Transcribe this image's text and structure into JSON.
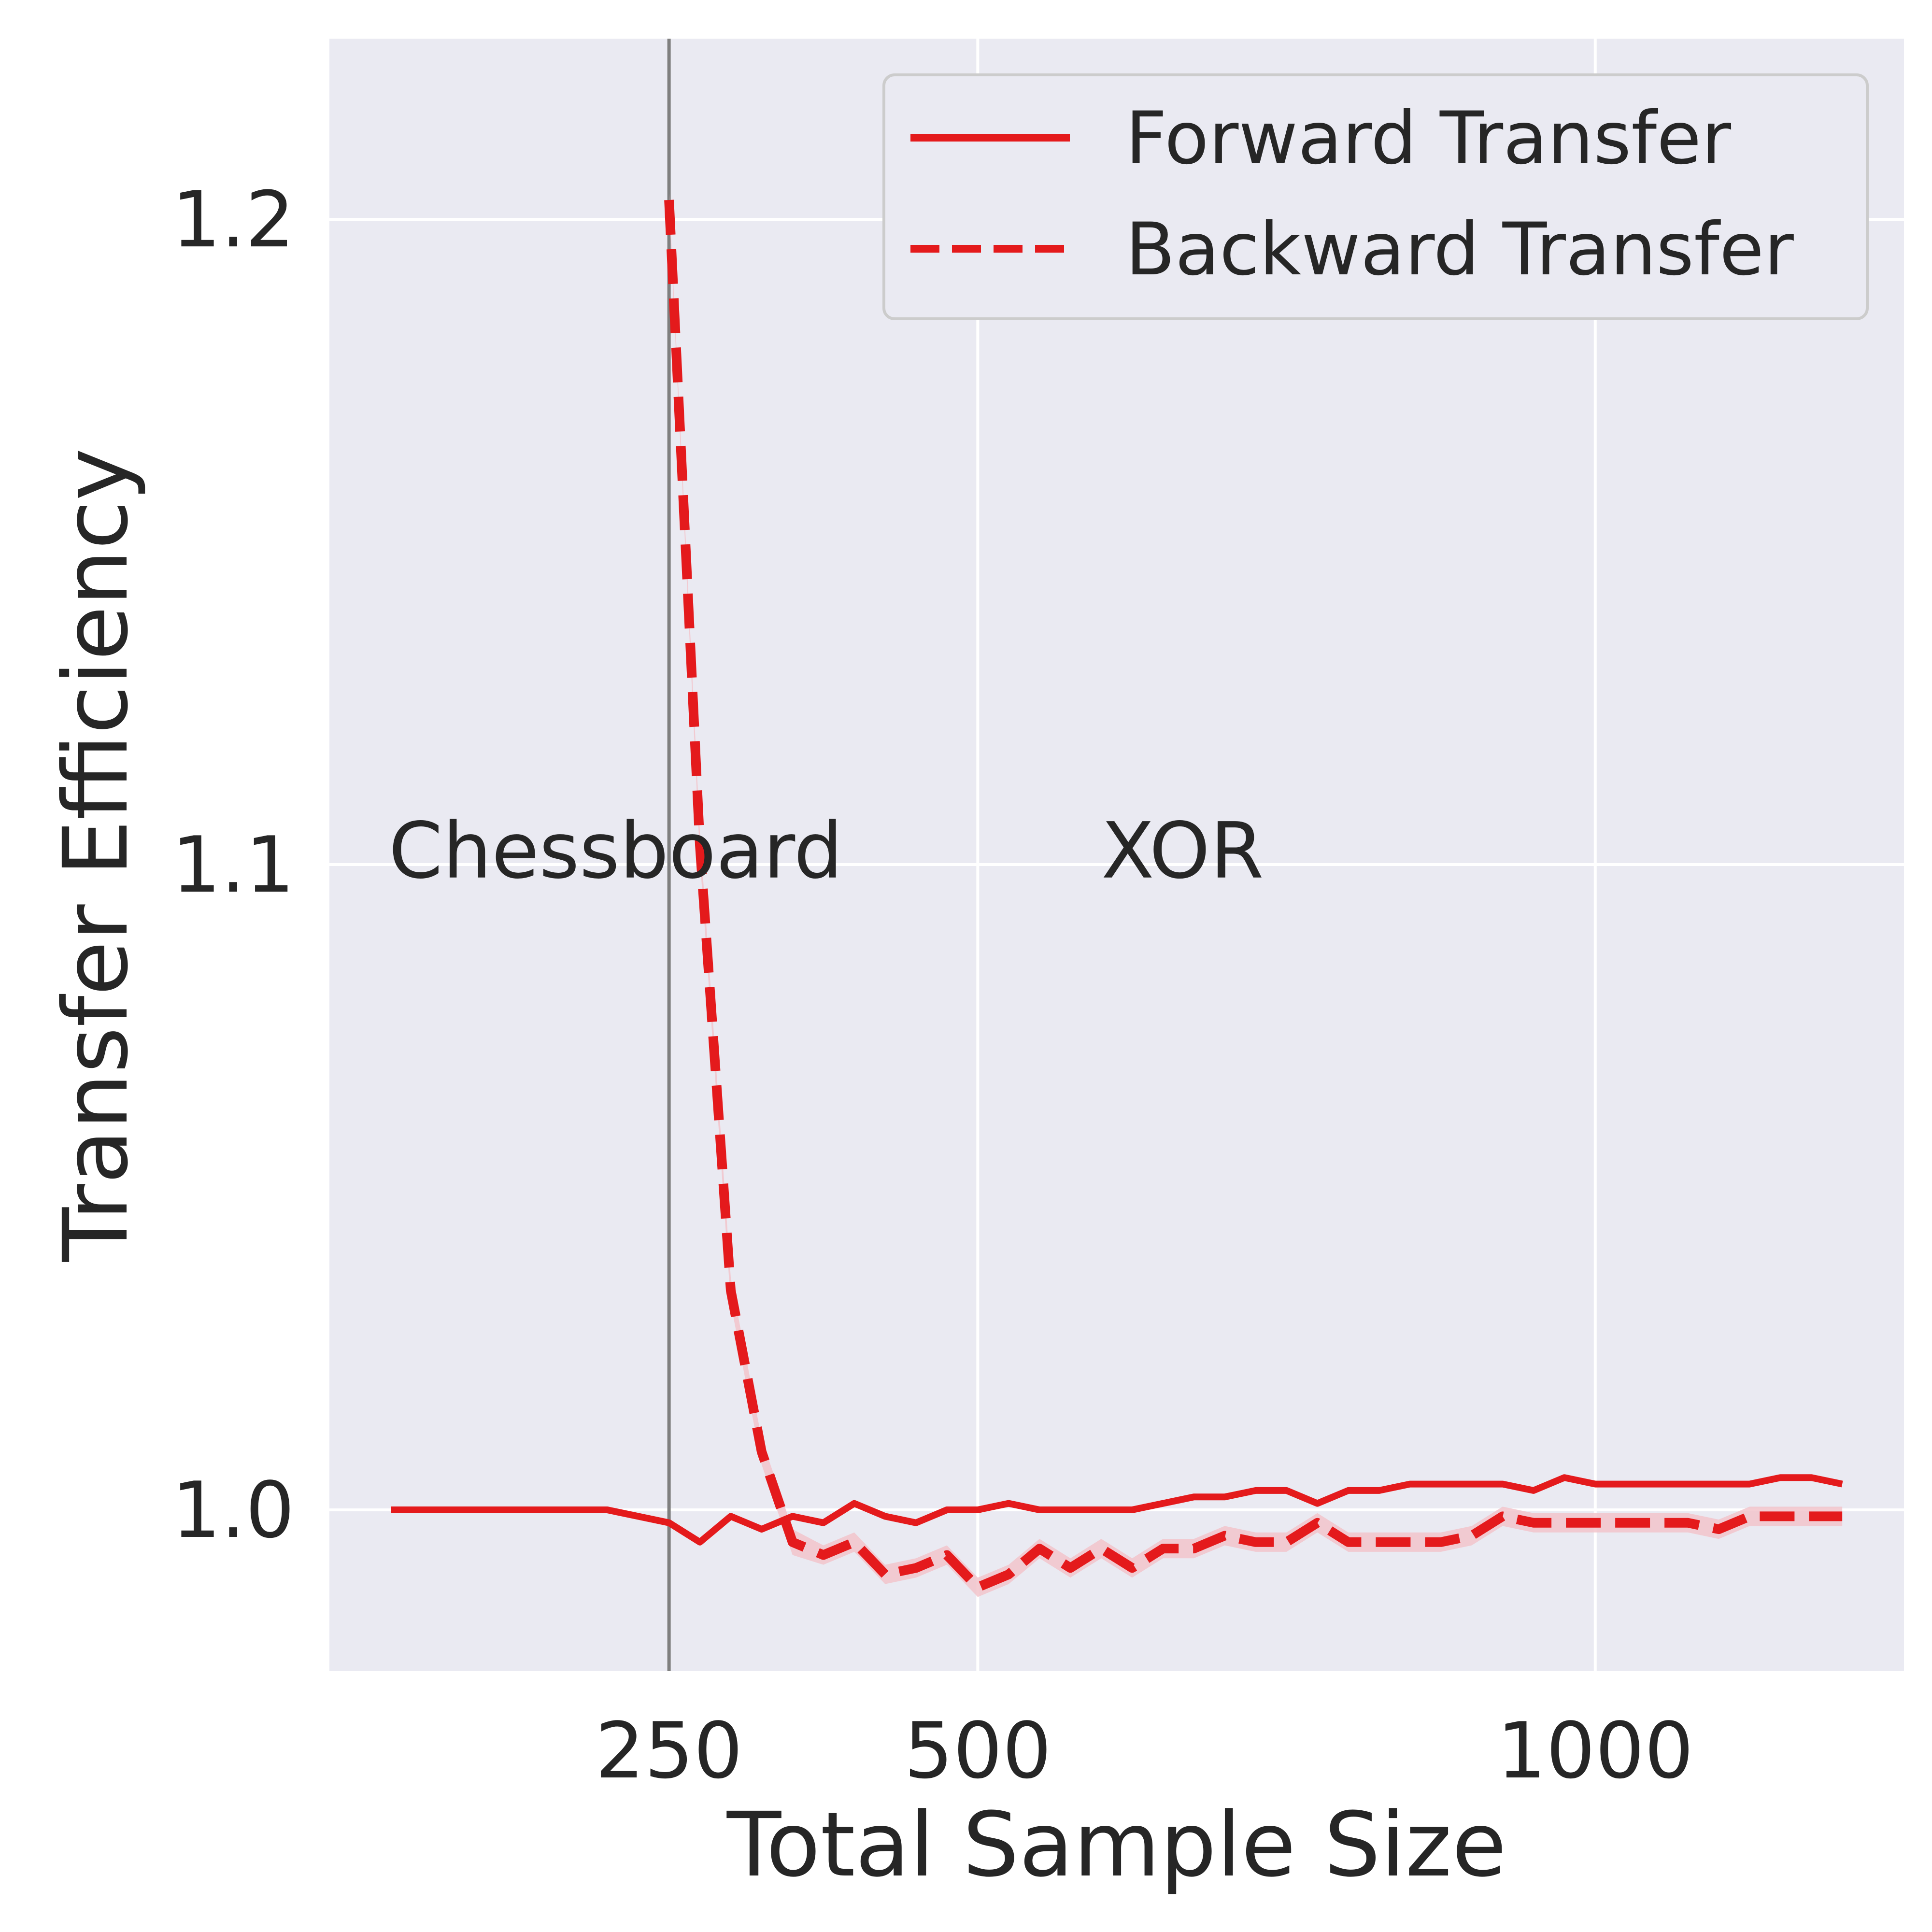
{
  "chart_data": {
    "type": "line",
    "xlabel": "Total Sample Size",
    "ylabel": "Transfer Efficiency",
    "xlim": [
      -25,
      1250
    ],
    "ylim": [
      0.975,
      1.228
    ],
    "xticks": [
      250,
      500,
      1000
    ],
    "xtick_labels": [
      "250",
      "500",
      "1000"
    ],
    "yticks": [
      1.0,
      1.1,
      1.2
    ],
    "ytick_labels": [
      "1.0",
      "1.1",
      "1.2"
    ],
    "grid": true,
    "legend_position": "top-right",
    "vline_x": 250,
    "annotations": [
      {
        "text": "Chessboard",
        "x": 23,
        "y": 1.098
      },
      {
        "text": "XOR",
        "x": 600,
        "y": 1.098
      }
    ],
    "line_color": "#e41a1c",
    "band_color": "#f2c4cb",
    "vline_color": "#7f7f7f",
    "background_color": "#eaeaf2",
    "series": [
      {
        "name": "Forward Transfer",
        "style": "solid",
        "x": [
          25,
          50,
          75,
          100,
          125,
          150,
          175,
          200,
          225,
          250,
          275,
          300,
          325,
          350,
          375,
          400,
          425,
          450,
          475,
          500,
          525,
          550,
          575,
          600,
          625,
          650,
          675,
          700,
          725,
          750,
          775,
          800,
          825,
          850,
          875,
          900,
          925,
          950,
          975,
          1000,
          1025,
          1050,
          1075,
          1100,
          1125,
          1150,
          1175,
          1200
        ],
        "y": [
          1.0,
          1.0,
          1.0,
          1.0,
          1.0,
          1.0,
          1.0,
          1.0,
          0.999,
          0.998,
          0.995,
          0.999,
          0.997,
          0.999,
          0.998,
          1.001,
          0.999,
          0.998,
          1.0,
          1.0,
          1.001,
          1.0,
          1.0,
          1.0,
          1.0,
          1.001,
          1.002,
          1.002,
          1.003,
          1.003,
          1.001,
          1.003,
          1.003,
          1.004,
          1.004,
          1.004,
          1.004,
          1.003,
          1.005,
          1.004,
          1.004,
          1.004,
          1.004,
          1.004,
          1.004,
          1.005,
          1.005,
          1.004
        ]
      },
      {
        "name": "Backward Transfer",
        "style": "dashed",
        "x": [
          250,
          275,
          300,
          325,
          350,
          375,
          400,
          425,
          450,
          475,
          500,
          525,
          550,
          575,
          600,
          625,
          650,
          675,
          700,
          725,
          750,
          775,
          800,
          825,
          850,
          875,
          900,
          925,
          950,
          975,
          1000,
          1025,
          1050,
          1075,
          1100,
          1125,
          1150,
          1175,
          1200
        ],
        "y": [
          1.203,
          1.103,
          1.034,
          1.009,
          0.995,
          0.993,
          0.995,
          0.99,
          0.991,
          0.993,
          0.988,
          0.99,
          0.994,
          0.991,
          0.994,
          0.991,
          0.994,
          0.994,
          0.996,
          0.995,
          0.995,
          0.998,
          0.995,
          0.995,
          0.995,
          0.995,
          0.996,
          0.999,
          0.998,
          0.998,
          0.998,
          0.998,
          0.998,
          0.998,
          0.997,
          0.999,
          0.999,
          0.999,
          0.999
        ],
        "ci_half_width": [
          0.001,
          0.002,
          0.002,
          0.002,
          0.002,
          0.0015,
          0.0015,
          0.0015,
          0.0015,
          0.0015,
          0.0015,
          0.0015,
          0.0015,
          0.0015,
          0.0015,
          0.0015,
          0.0015,
          0.0015,
          0.0015,
          0.0015,
          0.0015,
          0.0015,
          0.0015,
          0.0015,
          0.0015,
          0.0015,
          0.0015,
          0.0015,
          0.0015,
          0.0015,
          0.0015,
          0.0015,
          0.0015,
          0.0015,
          0.0015,
          0.0015,
          0.0015,
          0.0015,
          0.0015
        ]
      }
    ]
  }
}
